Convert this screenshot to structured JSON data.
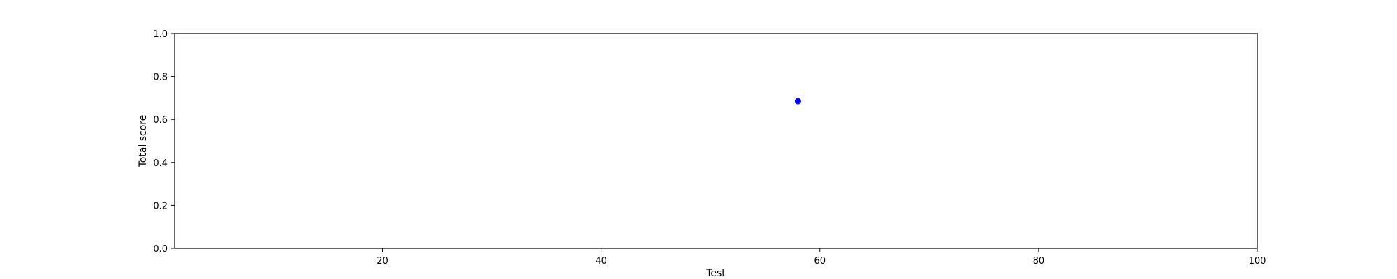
{
  "chart_data": {
    "type": "scatter",
    "title": "",
    "xlabel": "Test",
    "ylabel": "Total score",
    "xlim": [
      1,
      100
    ],
    "ylim": [
      0.0,
      1.0
    ],
    "x_ticks": [
      20,
      40,
      60,
      80,
      100
    ],
    "x_tick_labels": [
      "20",
      "40",
      "60",
      "80",
      "100"
    ],
    "y_ticks": [
      0.0,
      0.2,
      0.4,
      0.6,
      0.8,
      1.0
    ],
    "y_tick_labels": [
      "0.0",
      "0.2",
      "0.4",
      "0.6",
      "0.8",
      "1.0"
    ],
    "grid": false,
    "series": [
      {
        "color": "#0000ff",
        "points": [
          {
            "x": 58,
            "y": 0.685
          }
        ]
      }
    ]
  }
}
